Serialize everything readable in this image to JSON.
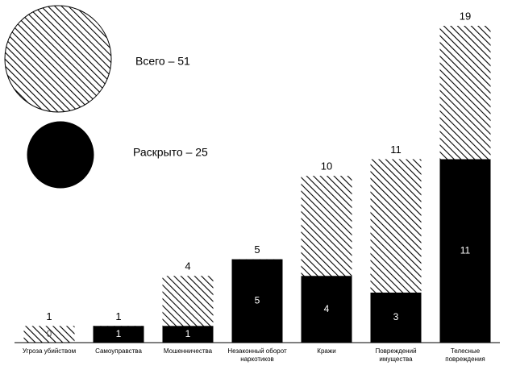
{
  "chart_data": {
    "type": "overlap-bar",
    "categories": [
      "Угроза убийством",
      "Самоуправства",
      "Мошенничества",
      "Незаконный оборот наркотиков",
      "Кражи",
      "Повреждений имущества",
      "Телесные повреждения"
    ],
    "series": [
      {
        "name": "Всего – 51",
        "color": "hatch",
        "values": [
          1,
          1,
          4,
          5,
          10,
          11,
          19
        ]
      },
      {
        "name": "Раскрыто – 25",
        "color": "#000000",
        "values": [
          0,
          1,
          1,
          5,
          4,
          3,
          11
        ]
      }
    ],
    "ylim": [
      0,
      19
    ]
  }
}
